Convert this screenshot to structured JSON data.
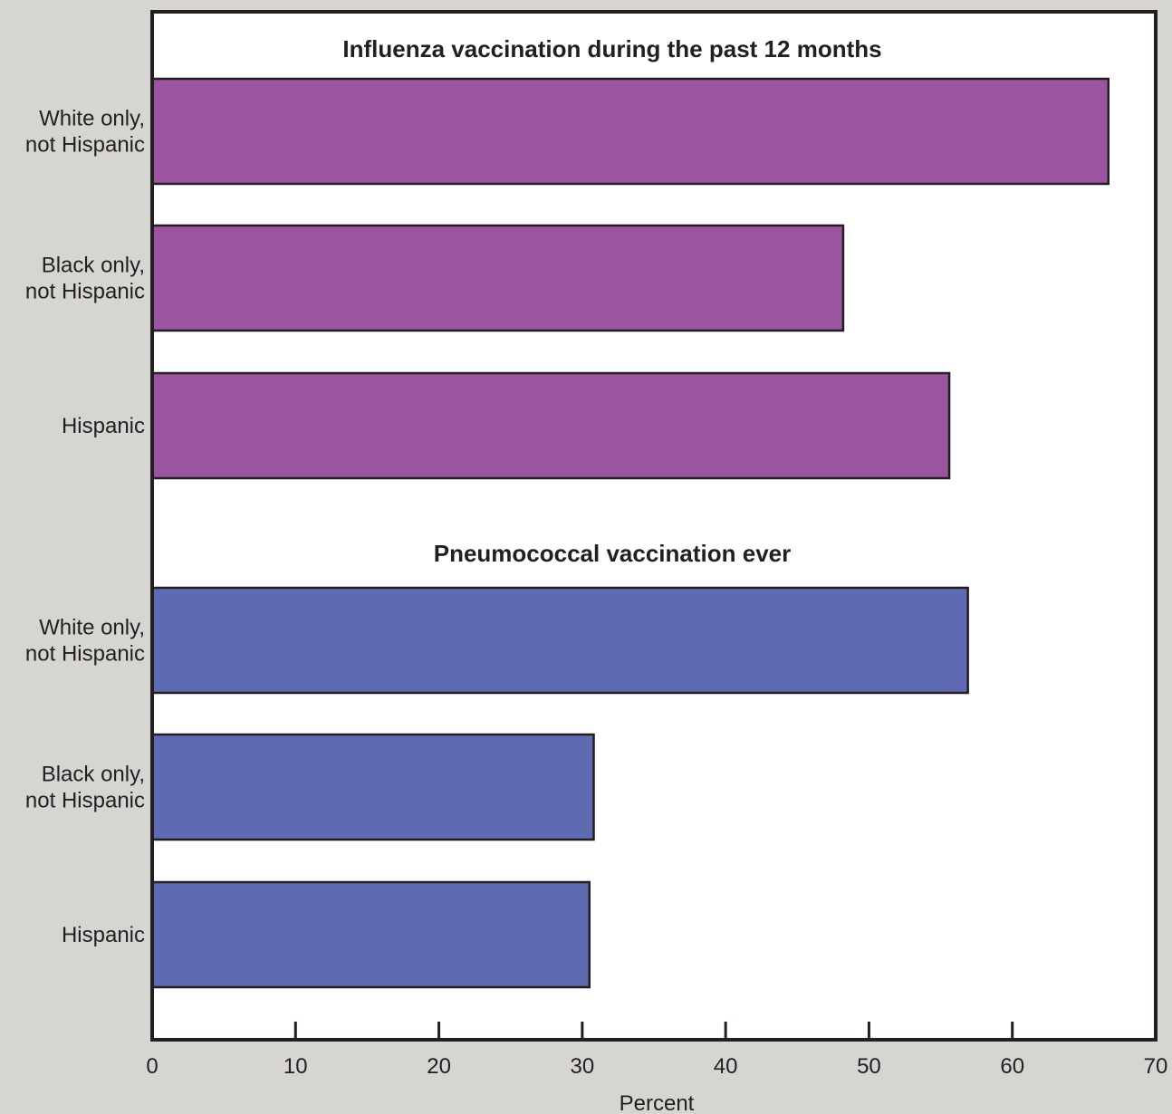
{
  "chart_data": {
    "type": "bar",
    "orientation": "horizontal",
    "xlabel": "Percent",
    "xlim": [
      0,
      70
    ],
    "xticks": [
      0,
      10,
      20,
      30,
      40,
      50,
      60,
      70
    ],
    "grid": false,
    "panels": [
      {
        "title": "Influenza vaccination during the past 12 months",
        "color": "#9a54a0",
        "categories": [
          [
            "White only,",
            "not Hispanic"
          ],
          [
            "Black only,",
            "not Hispanic"
          ],
          [
            "Hispanic"
          ]
        ],
        "values": [
          66.7,
          48.2,
          55.6
        ]
      },
      {
        "title": "Pneumococcal vaccination ever",
        "color": "#5e6bb3",
        "categories": [
          [
            "White only,",
            "not Hispanic"
          ],
          [
            "Black only,",
            "not Hispanic"
          ],
          [
            "Hispanic"
          ]
        ],
        "values": [
          56.9,
          30.8,
          30.5
        ]
      }
    ]
  }
}
